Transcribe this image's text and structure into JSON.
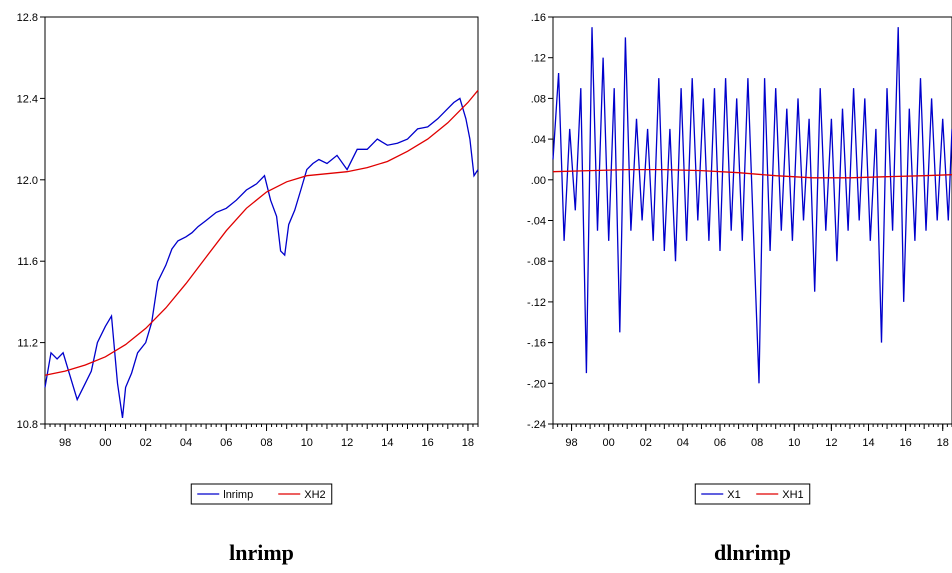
{
  "chart_data": [
    {
      "type": "line",
      "caption": "lnrimp",
      "x_ticks": [
        "98",
        "00",
        "02",
        "04",
        "06",
        "08",
        "10",
        "12",
        "14",
        "16",
        "18"
      ],
      "y_ticks": [
        "10.8",
        "11.2",
        "11.6",
        "12.0",
        "12.4",
        "12.8"
      ],
      "ylim": [
        10.8,
        12.8
      ],
      "xlim": [
        1997,
        2018.5
      ],
      "legend": [
        "lnrimp",
        "XH2"
      ],
      "legend_position": "bottom-center",
      "colors": {
        "lnrimp": "#0000cc",
        "XH2": "#e00000"
      },
      "series": [
        {
          "name": "lnrimp",
          "x": [
            1997.0,
            1997.3,
            1997.6,
            1997.9,
            1998.2,
            1998.6,
            1999.0,
            1999.3,
            1999.6,
            2000.0,
            2000.3,
            2000.6,
            2000.85,
            2001.0,
            2001.3,
            2001.6,
            2002.0,
            2002.3,
            2002.6,
            2003.0,
            2003.3,
            2003.6,
            2004.0,
            2004.3,
            2004.6,
            2005.0,
            2005.5,
            2006.0,
            2006.5,
            2007.0,
            2007.5,
            2007.9,
            2008.2,
            2008.5,
            2008.7,
            2008.9,
            2009.1,
            2009.4,
            2009.7,
            2010.0,
            2010.3,
            2010.6,
            2011.0,
            2011.5,
            2012.0,
            2012.5,
            2013.0,
            2013.5,
            2014.0,
            2014.5,
            2015.0,
            2015.5,
            2016.0,
            2016.5,
            2017.0,
            2017.3,
            2017.6,
            2017.9,
            2018.1,
            2018.3,
            2018.5
          ],
          "y": [
            10.98,
            11.15,
            11.12,
            11.15,
            11.05,
            10.92,
            11.0,
            11.06,
            11.2,
            11.28,
            11.33,
            11.0,
            10.83,
            10.98,
            11.05,
            11.15,
            11.2,
            11.3,
            11.5,
            11.58,
            11.66,
            11.7,
            11.72,
            11.74,
            11.77,
            11.8,
            11.84,
            11.86,
            11.9,
            11.95,
            11.98,
            12.02,
            11.9,
            11.82,
            11.65,
            11.63,
            11.78,
            11.85,
            11.95,
            12.05,
            12.08,
            12.1,
            12.08,
            12.12,
            12.05,
            12.15,
            12.15,
            12.2,
            12.17,
            12.18,
            12.2,
            12.25,
            12.26,
            12.3,
            12.35,
            12.38,
            12.4,
            12.3,
            12.2,
            12.02,
            12.05
          ]
        },
        {
          "name": "XH2",
          "x": [
            1997.0,
            1998.0,
            1999.0,
            2000.0,
            2001.0,
            2002.0,
            2003.0,
            2004.0,
            2005.0,
            2006.0,
            2007.0,
            2008.0,
            2009.0,
            2010.0,
            2011.0,
            2012.0,
            2013.0,
            2014.0,
            2015.0,
            2016.0,
            2017.0,
            2018.0,
            2018.5
          ],
          "y": [
            11.04,
            11.06,
            11.09,
            11.13,
            11.19,
            11.27,
            11.37,
            11.49,
            11.62,
            11.75,
            11.86,
            11.94,
            11.99,
            12.02,
            12.03,
            12.04,
            12.06,
            12.09,
            12.14,
            12.2,
            12.28,
            12.38,
            12.44
          ]
        }
      ]
    },
    {
      "type": "line",
      "caption": "dlnrimp",
      "x_ticks": [
        "98",
        "00",
        "02",
        "04",
        "06",
        "08",
        "10",
        "12",
        "14",
        "16",
        "18"
      ],
      "y_ticks": [
        ".16",
        ".12",
        ".08",
        ".04",
        ".00",
        "-.04",
        "-.08",
        "-.12",
        "-.16",
        "-.20",
        "-.24"
      ],
      "ylim": [
        -0.24,
        0.16
      ],
      "xlim": [
        1997,
        2018.5
      ],
      "legend": [
        "X1",
        "XH1"
      ],
      "legend_position": "bottom-center",
      "colors": {
        "X1": "#0000cc",
        "XH1": "#e00000"
      },
      "series": [
        {
          "name": "X1",
          "x": [
            1997.0,
            1997.3,
            1997.6,
            1997.9,
            1998.2,
            1998.5,
            1998.8,
            1999.1,
            1999.4,
            1999.7,
            2000.0,
            2000.3,
            2000.6,
            2000.9,
            2001.2,
            2001.5,
            2001.8,
            2002.1,
            2002.4,
            2002.7,
            2003.0,
            2003.3,
            2003.6,
            2003.9,
            2004.2,
            2004.5,
            2004.8,
            2005.1,
            2005.4,
            2005.7,
            2006.0,
            2006.3,
            2006.6,
            2006.9,
            2007.2,
            2007.5,
            2007.8,
            2008.1,
            2008.4,
            2008.7,
            2009.0,
            2009.3,
            2009.6,
            2009.9,
            2010.2,
            2010.5,
            2010.8,
            2011.1,
            2011.4,
            2011.7,
            2012.0,
            2012.3,
            2012.6,
            2012.9,
            2013.2,
            2013.5,
            2013.8,
            2014.1,
            2014.4,
            2014.7,
            2015.0,
            2015.3,
            2015.6,
            2015.9,
            2016.2,
            2016.5,
            2016.8,
            2017.1,
            2017.4,
            2017.7,
            2018.0,
            2018.3,
            2018.5
          ],
          "y": [
            0.02,
            0.105,
            -0.06,
            0.05,
            -0.03,
            0.09,
            -0.19,
            0.15,
            -0.05,
            0.12,
            -0.06,
            0.09,
            -0.15,
            0.14,
            -0.05,
            0.06,
            -0.04,
            0.05,
            -0.06,
            0.1,
            -0.07,
            0.05,
            -0.08,
            0.09,
            -0.06,
            0.1,
            -0.04,
            0.08,
            -0.06,
            0.09,
            -0.07,
            0.1,
            -0.05,
            0.08,
            -0.06,
            0.1,
            -0.05,
            -0.2,
            0.1,
            -0.07,
            0.09,
            -0.05,
            0.07,
            -0.06,
            0.08,
            -0.04,
            0.06,
            -0.11,
            0.09,
            -0.05,
            0.06,
            -0.08,
            0.07,
            -0.05,
            0.09,
            -0.04,
            0.08,
            -0.06,
            0.05,
            -0.16,
            0.09,
            -0.05,
            0.15,
            -0.12,
            0.07,
            -0.06,
            0.1,
            -0.05,
            0.08,
            -0.04,
            0.06,
            -0.04,
            0.05
          ]
        },
        {
          "name": "XH1",
          "x": [
            1997.0,
            1999.0,
            2001.0,
            2003.0,
            2005.0,
            2007.0,
            2009.0,
            2011.0,
            2013.0,
            2015.0,
            2017.0,
            2018.5
          ],
          "y": [
            0.008,
            0.009,
            0.01,
            0.01,
            0.009,
            0.007,
            0.004,
            0.002,
            0.002,
            0.003,
            0.004,
            0.005
          ]
        }
      ]
    }
  ]
}
